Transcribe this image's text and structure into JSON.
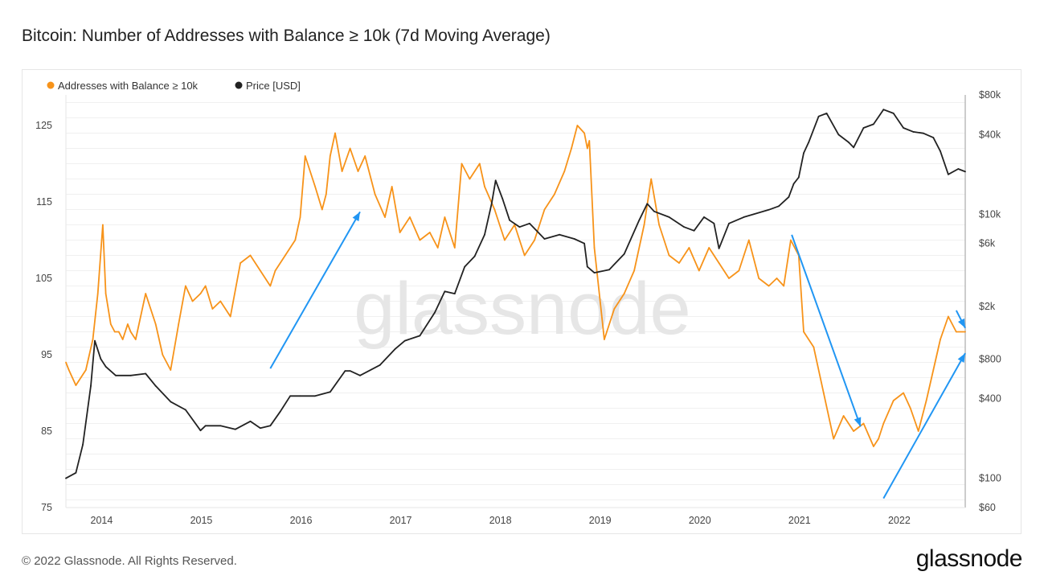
{
  "title": "Bitcoin: Number of Addresses with Balance ≥ 10k (7d Moving Average)",
  "footer": {
    "copyright": "© 2022 Glassnode. All Rights Reserved.",
    "brand": "glassnode"
  },
  "watermark": "glassnode",
  "colors": {
    "addresses": "#f7931a",
    "price": "#222222",
    "arrow": "#2196f3"
  },
  "chart_data": {
    "type": "line",
    "title": "Bitcoin: Number of Addresses with Balance ≥ 10k (7d Moving Average)",
    "legend": [
      "Addresses with Balance ≥ 10k",
      "Price [USD]"
    ],
    "legend_position": "top-left",
    "x_range": [
      2013.65,
      2022.67
    ],
    "x_ticks": [
      2014,
      2015,
      2016,
      2017,
      2018,
      2019,
      2020,
      2021,
      2022
    ],
    "x_tick_labels": [
      "2014",
      "2015",
      "2016",
      "2017",
      "2018",
      "2019",
      "2020",
      "2021",
      "2022"
    ],
    "y_left": {
      "range": [
        75,
        129
      ],
      "ticks": [
        75,
        85,
        95,
        105,
        115,
        125
      ]
    },
    "y_right": {
      "scale": "log",
      "range": [
        60,
        80000
      ],
      "ticks": [
        60,
        100,
        400,
        800,
        2000,
        6000,
        10000,
        40000,
        80000
      ],
      "tick_labels": [
        "$60",
        "$100",
        "$400",
        "$800",
        "$2k",
        "$6k",
        "$10k",
        "$40k",
        "$80k"
      ]
    },
    "series": [
      {
        "name": "Addresses with Balance ≥ 10k",
        "axis": "left",
        "x": [
          2013.65,
          2013.68,
          2013.75,
          2013.85,
          2013.92,
          2013.97,
          2014.02,
          2014.05,
          2014.1,
          2014.14,
          2014.18,
          2014.22,
          2014.27,
          2014.3,
          2014.35,
          2014.45,
          2014.55,
          2014.62,
          2014.7,
          2014.78,
          2014.85,
          2014.92,
          2015.0,
          2015.05,
          2015.12,
          2015.2,
          2015.3,
          2015.4,
          2015.5,
          2015.6,
          2015.7,
          2015.75,
          2015.85,
          2015.95,
          2016.0,
          2016.05,
          2016.15,
          2016.22,
          2016.26,
          2016.3,
          2016.35,
          2016.42,
          2016.5,
          2016.58,
          2016.65,
          2016.75,
          2016.85,
          2016.92,
          2017.0,
          2017.05,
          2017.1,
          2017.2,
          2017.3,
          2017.38,
          2017.45,
          2017.55,
          2017.62,
          2017.7,
          2017.8,
          2017.85,
          2017.95,
          2018.05,
          2018.15,
          2018.25,
          2018.35,
          2018.45,
          2018.55,
          2018.65,
          2018.72,
          2018.78,
          2018.85,
          2018.88,
          2018.9,
          2018.95,
          2019.05,
          2019.15,
          2019.25,
          2019.35,
          2019.45,
          2019.52,
          2019.6,
          2019.7,
          2019.8,
          2019.9,
          2020.0,
          2020.1,
          2020.2,
          2020.3,
          2020.4,
          2020.5,
          2020.6,
          2020.7,
          2020.78,
          2020.85,
          2020.92,
          2021.0,
          2021.05,
          2021.15,
          2021.25,
          2021.35,
          2021.45,
          2021.55,
          2021.65,
          2021.75,
          2021.8,
          2021.85,
          2021.95,
          2022.05,
          2022.12,
          2022.2,
          2022.28,
          2022.35,
          2022.42,
          2022.5,
          2022.58,
          2022.67
        ],
        "values": [
          94,
          93,
          91,
          93,
          97,
          103,
          112,
          103,
          99,
          98,
          98,
          97,
          99,
          98,
          97,
          103,
          99,
          95,
          93,
          99,
          104,
          102,
          103,
          104,
          101,
          102,
          100,
          107,
          108,
          106,
          104,
          106,
          108,
          110,
          113,
          121,
          117,
          114,
          116,
          121,
          124,
          119,
          122,
          119,
          121,
          116,
          113,
          117,
          111,
          112,
          113,
          110,
          111,
          109,
          113,
          109,
          120,
          118,
          120,
          117,
          114,
          110,
          112,
          108,
          110,
          114,
          116,
          119,
          122,
          125,
          124,
          122,
          123,
          109,
          97,
          101,
          103,
          106,
          112,
          118,
          112,
          108,
          107,
          109,
          106,
          109,
          107,
          105,
          106,
          110,
          105,
          104,
          105,
          104,
          110,
          108,
          98,
          96,
          90,
          84,
          87,
          85,
          86,
          83,
          84,
          86,
          89,
          90,
          88,
          85,
          89,
          93,
          97,
          100,
          98,
          98
        ]
      },
      {
        "name": "Price [USD]",
        "axis": "right",
        "x": [
          2013.65,
          2013.75,
          2013.82,
          2013.9,
          2013.94,
          2014.0,
          2014.05,
          2014.15,
          2014.3,
          2014.45,
          2014.55,
          2014.7,
          2014.85,
          2015.0,
          2015.05,
          2015.2,
          2015.35,
          2015.5,
          2015.6,
          2015.7,
          2015.8,
          2015.9,
          2016.0,
          2016.15,
          2016.3,
          2016.45,
          2016.5,
          2016.6,
          2016.8,
          2016.95,
          2017.05,
          2017.2,
          2017.35,
          2017.45,
          2017.55,
          2017.65,
          2017.75,
          2017.85,
          2017.92,
          2017.96,
          2018.03,
          2018.1,
          2018.2,
          2018.3,
          2018.45,
          2018.6,
          2018.75,
          2018.85,
          2018.88,
          2018.95,
          2019.1,
          2019.25,
          2019.4,
          2019.48,
          2019.55,
          2019.7,
          2019.85,
          2019.95,
          2020.05,
          2020.15,
          2020.2,
          2020.3,
          2020.45,
          2020.55,
          2020.7,
          2020.8,
          2020.9,
          2020.95,
          2021.0,
          2021.05,
          2021.1,
          2021.2,
          2021.28,
          2021.4,
          2021.5,
          2021.55,
          2021.65,
          2021.75,
          2021.85,
          2021.95,
          2022.05,
          2022.15,
          2022.25,
          2022.35,
          2022.42,
          2022.5,
          2022.6,
          2022.67
        ],
        "values": [
          100,
          110,
          180,
          500,
          1100,
          800,
          700,
          600,
          600,
          620,
          500,
          380,
          330,
          230,
          250,
          250,
          235,
          270,
          240,
          250,
          320,
          420,
          420,
          420,
          450,
          650,
          650,
          600,
          720,
          950,
          1100,
          1200,
          1800,
          2600,
          2500,
          4000,
          4800,
          7000,
          12000,
          18000,
          13000,
          9000,
          8000,
          8500,
          6500,
          7000,
          6500,
          6000,
          4000,
          3600,
          3800,
          5000,
          9000,
          12000,
          10500,
          9500,
          8000,
          7500,
          9500,
          8500,
          5500,
          8500,
          9500,
          10000,
          10800,
          11500,
          13500,
          17000,
          19000,
          29000,
          35000,
          55000,
          58000,
          40000,
          35000,
          32000,
          45000,
          48000,
          62000,
          58000,
          45000,
          42000,
          41000,
          38000,
          30000,
          20000,
          22000,
          21000
        ]
      }
    ],
    "annotations": [
      {
        "type": "arrow",
        "from": [
          2015.7,
          93.2
        ],
        "to": [
          2016.6,
          113.7
        ]
      },
      {
        "type": "arrow",
        "from": [
          2020.93,
          110.7
        ],
        "to": [
          2021.62,
          85.6
        ]
      },
      {
        "type": "arrow",
        "from": [
          2021.85,
          76.2
        ],
        "to": [
          2022.67,
          95.2
        ]
      },
      {
        "type": "arrow",
        "from": [
          2022.58,
          100.8
        ],
        "to": [
          2022.67,
          98.5
        ]
      }
    ]
  }
}
